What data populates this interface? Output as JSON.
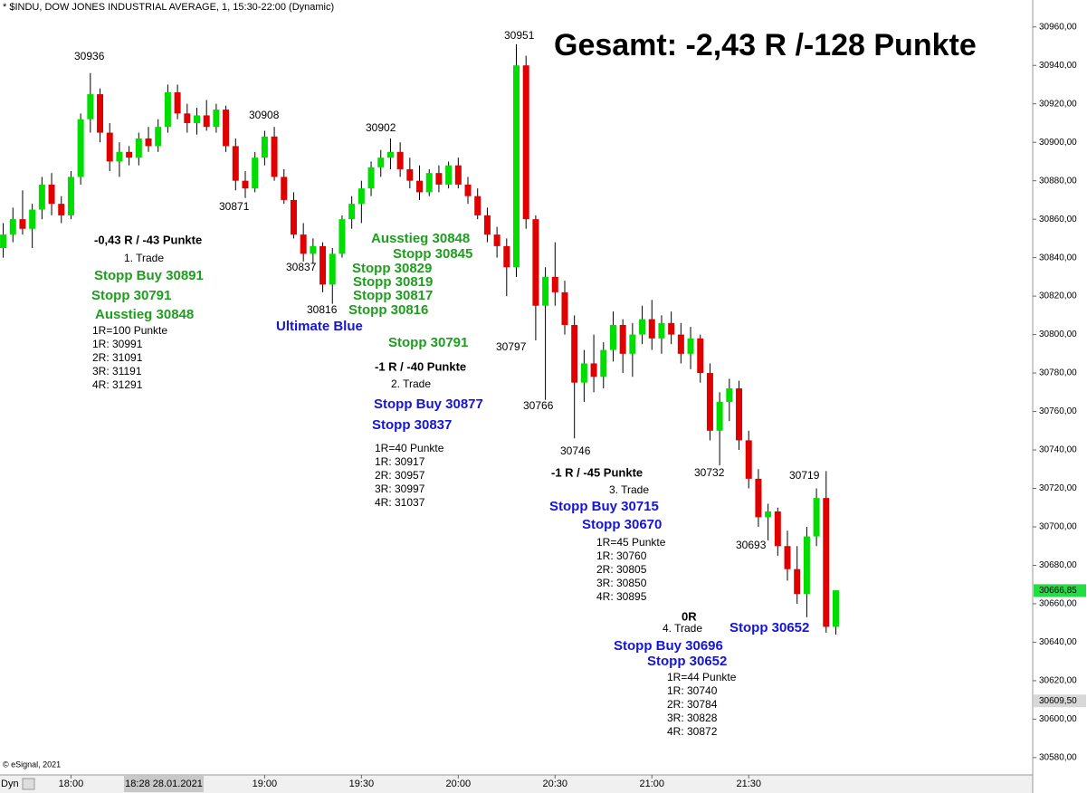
{
  "chart_data": {
    "type": "candlestick",
    "title": "* $INDU, DOW JONES INDUSTRIAL AVERAGE, 1, 15:30-22:00 (Dynamic)",
    "copyright": "© eSignal, 2021",
    "interval_button": "Dyn",
    "cursor_label": "18:28 28.01.2021",
    "up_color": "#00dd00",
    "down_color": "#e00000",
    "x": [
      "17:39",
      "17:42",
      "17:45",
      "17:48",
      "17:51",
      "17:54",
      "17:57",
      "18:00",
      "18:03",
      "18:06",
      "18:09",
      "18:12",
      "18:15",
      "18:18",
      "18:21",
      "18:24",
      "18:27",
      "18:30",
      "18:33",
      "18:36",
      "18:39",
      "18:42",
      "18:45",
      "18:48",
      "18:51",
      "18:54",
      "18:57",
      "19:00",
      "19:03",
      "19:06",
      "19:09",
      "19:12",
      "19:15",
      "19:18",
      "19:21",
      "19:24",
      "19:27",
      "19:30",
      "19:33",
      "19:36",
      "19:39",
      "19:42",
      "19:45",
      "19:48",
      "19:51",
      "19:54",
      "19:57",
      "20:00",
      "20:03",
      "20:06",
      "20:09",
      "20:12",
      "20:15",
      "20:18",
      "20:21",
      "20:24",
      "20:27",
      "20:30",
      "20:33",
      "20:36",
      "20:39",
      "20:42",
      "20:45",
      "20:48",
      "20:51",
      "20:54",
      "20:57",
      "21:00",
      "21:03",
      "21:06",
      "21:09",
      "21:12",
      "21:15",
      "21:18",
      "21:21",
      "21:24",
      "21:27",
      "21:30",
      "21:33",
      "21:36",
      "21:39",
      "21:42",
      "21:45",
      "21:48",
      "21:51",
      "21:54",
      "21:57"
    ],
    "open": [
      30845,
      30852,
      30860,
      30855,
      30865,
      30878,
      30868,
      30862,
      30882,
      30912,
      30925,
      30905,
      30890,
      30895,
      30892,
      30902,
      30898,
      30908,
      30926,
      30915,
      30910,
      30914,
      30908,
      30917,
      30898,
      30880,
      30876,
      30892,
      30903,
      30882,
      30870,
      30852,
      30842,
      30846,
      30826,
      30842,
      30860,
      30868,
      30876,
      30887,
      30892,
      30895,
      30886,
      30880,
      30874,
      30884,
      30878,
      30888,
      30878,
      30872,
      30862,
      30852,
      30846,
      30835,
      30940,
      30860,
      30815,
      30830,
      30822,
      30805,
      30775,
      30785,
      30778,
      30792,
      30805,
      30790,
      30800,
      30808,
      30798,
      30806,
      30800,
      30790,
      30798,
      30780,
      30750,
      30765,
      30772,
      30745,
      30725,
      30705,
      30708,
      30690,
      30678,
      30665,
      30695,
      30715,
      30648
    ],
    "high": [
      30858,
      30866,
      30875,
      30868,
      30882,
      30884,
      30872,
      30885,
      30915,
      30936,
      30928,
      30910,
      30900,
      30898,
      30905,
      30908,
      30912,
      30930,
      30930,
      30920,
      30918,
      30922,
      30920,
      30919,
      30902,
      30885,
      30895,
      30906,
      30908,
      30886,
      30874,
      30858,
      30850,
      30848,
      30845,
      30862,
      30872,
      30880,
      30890,
      30896,
      30902,
      30900,
      30892,
      30888,
      30886,
      30888,
      30890,
      30892,
      30882,
      30876,
      30866,
      30856,
      30850,
      30951,
      30945,
      30862,
      30835,
      30848,
      30828,
      30810,
      30792,
      30800,
      30796,
      30812,
      30808,
      30806,
      30815,
      30818,
      30810,
      30812,
      30806,
      30804,
      30800,
      30785,
      30770,
      30777,
      30776,
      30750,
      30730,
      30712,
      30710,
      30698,
      30690,
      30700,
      30720,
      30729,
      30667
    ],
    "low": [
      30840,
      30848,
      30852,
      30845,
      30860,
      30862,
      30858,
      30860,
      30878,
      30905,
      30900,
      30885,
      30882,
      30888,
      30888,
      30895,
      30895,
      30905,
      30912,
      30905,
      30904,
      30906,
      30905,
      30895,
      30875,
      30871,
      30874,
      30888,
      30880,
      30868,
      30850,
      30838,
      30837,
      30822,
      30816,
      30840,
      30855,
      30858,
      30872,
      30882,
      30886,
      30882,
      30876,
      30870,
      30872,
      30874,
      30876,
      30876,
      30868,
      30860,
      30848,
      30840,
      30820,
      30830,
      30855,
      30797,
      30766,
      30815,
      30800,
      30746,
      30765,
      30770,
      30772,
      30786,
      30780,
      30778,
      30795,
      30792,
      30790,
      30795,
      30785,
      30782,
      30775,
      30745,
      30732,
      30755,
      30740,
      30720,
      30700,
      30693,
      30685,
      30672,
      30660,
      30653,
      30690,
      30645,
      30644
    ],
    "close": [
      30852,
      30860,
      30855,
      30865,
      30878,
      30868,
      30862,
      30882,
      30912,
      30925,
      30905,
      30890,
      30895,
      30892,
      30902,
      30898,
      30908,
      30926,
      30915,
      30910,
      30914,
      30908,
      30917,
      30898,
      30880,
      30876,
      30892,
      30903,
      30882,
      30870,
      30852,
      30842,
      30846,
      30826,
      30842,
      30860,
      30868,
      30876,
      30887,
      30892,
      30895,
      30886,
      30880,
      30874,
      30884,
      30878,
      30888,
      30878,
      30872,
      30862,
      30852,
      30846,
      30835,
      30940,
      30860,
      30815,
      30830,
      30822,
      30805,
      30775,
      30785,
      30778,
      30792,
      30805,
      30790,
      30800,
      30808,
      30798,
      30806,
      30800,
      30790,
      30798,
      30780,
      30750,
      30765,
      30772,
      30745,
      30725,
      30705,
      30708,
      30690,
      30678,
      30665,
      30695,
      30715,
      30648,
      30667
    ],
    "xlim": [
      "17:38",
      "22:58"
    ],
    "xticks": [
      "18:00",
      "19:00",
      "19:30",
      "20:00",
      "20:30",
      "21:00",
      "21:30"
    ],
    "ylim": [
      30571,
      30974
    ],
    "yticks": [
      {
        "value": 30580,
        "label": "30580,00"
      },
      {
        "value": 30600,
        "label": "30600,00"
      },
      {
        "value": 30620,
        "label": "30620,00"
      },
      {
        "value": 30640,
        "label": "30640,00"
      },
      {
        "value": 30660,
        "label": "30660,00"
      },
      {
        "value": 30680,
        "label": "30680,00"
      },
      {
        "value": 30700,
        "label": "30700,00"
      },
      {
        "value": 30720,
        "label": "30720,00"
      },
      {
        "value": 30740,
        "label": "30740,00"
      },
      {
        "value": 30760,
        "label": "30760,00"
      },
      {
        "value": 30780,
        "label": "30780,00"
      },
      {
        "value": 30800,
        "label": "30800,00"
      },
      {
        "value": 30820,
        "label": "30820,00"
      },
      {
        "value": 30840,
        "label": "30840,00"
      },
      {
        "value": 30860,
        "label": "30860,00"
      },
      {
        "value": 30880,
        "label": "30880,00"
      },
      {
        "value": 30900,
        "label": "30900,00"
      },
      {
        "value": 30920,
        "label": "30920,00"
      },
      {
        "value": 30940,
        "label": "30940,00"
      },
      {
        "value": 30960,
        "label": "30960,00"
      }
    ],
    "price_markers": [
      {
        "value": 30666.85,
        "label": "30666,85",
        "color": "#22dd44"
      },
      {
        "value": 30609.5,
        "label": "30609,50",
        "color": "#d8d8d8"
      }
    ],
    "price_labels": [
      30936,
      30908,
      30871,
      30902,
      30837,
      30816,
      30951,
      30797,
      30766,
      30746,
      30732,
      30719,
      30693
    ],
    "annotations": [
      {
        "text": "Gesamt: -2,43 R /-128 Punkte",
        "color": "#000000",
        "bold": true
      },
      {
        "text": "-0,43 R / -43 Punkte",
        "color": "#000000",
        "bold": true
      },
      {
        "text": "1. Trade",
        "color": "#000000",
        "bold": false
      },
      {
        "text": "Stopp Buy 30891",
        "color": "#1e9e1e",
        "bold": true
      },
      {
        "text": "Stopp 30791",
        "color": "#1e9e1e",
        "bold": true
      },
      {
        "text": "Ausstieg 30848",
        "color": "#1e9e1e",
        "bold": true
      },
      {
        "text": "1R=100 Punkte",
        "color": "#000000",
        "bold": false
      },
      {
        "text": "1R: 30991",
        "color": "#000000",
        "bold": false
      },
      {
        "text": "2R: 31091",
        "color": "#000000",
        "bold": false
      },
      {
        "text": "3R: 31191",
        "color": "#000000",
        "bold": false
      },
      {
        "text": "4R: 31291",
        "color": "#000000",
        "bold": false
      },
      {
        "text": "Ausstieg 30848",
        "color": "#1e9e1e",
        "bold": true
      },
      {
        "text": "Stopp 30845",
        "color": "#1e9e1e",
        "bold": true
      },
      {
        "text": "Stopp 30829",
        "color": "#1e9e1e",
        "bold": true
      },
      {
        "text": "Stopp 30819",
        "color": "#1e9e1e",
        "bold": true
      },
      {
        "text": "Stopp 30817",
        "color": "#1e9e1e",
        "bold": true
      },
      {
        "text": "Stopp 30816",
        "color": "#1e9e1e",
        "bold": true
      },
      {
        "text": "Ultimate Blue",
        "color": "#1515d6",
        "bold": true
      },
      {
        "text": "Stopp 30791",
        "color": "#1e9e1e",
        "bold": true
      },
      {
        "text": "-1 R / -40 Punkte",
        "color": "#000000",
        "bold": true
      },
      {
        "text": "2. Trade",
        "color": "#000000",
        "bold": false
      },
      {
        "text": "Stopp Buy 30877",
        "color": "#1515d6",
        "bold": true
      },
      {
        "text": "Stopp 30837",
        "color": "#1515d6",
        "bold": true
      },
      {
        "text": "1R=40 Punkte",
        "color": "#000000",
        "bold": false
      },
      {
        "text": "1R: 30917",
        "color": "#000000",
        "bold": false
      },
      {
        "text": "2R: 30957",
        "color": "#000000",
        "bold": false
      },
      {
        "text": "3R: 30997",
        "color": "#000000",
        "bold": false
      },
      {
        "text": "4R: 31037",
        "color": "#000000",
        "bold": false
      },
      {
        "text": "-1 R / -45 Punkte",
        "color": "#000000",
        "bold": true
      },
      {
        "text": "3. Trade",
        "color": "#000000",
        "bold": false
      },
      {
        "text": "Stopp Buy 30715",
        "color": "#1515d6",
        "bold": true
      },
      {
        "text": "Stopp 30670",
        "color": "#1515d6",
        "bold": true
      },
      {
        "text": "1R=45 Punkte",
        "color": "#000000",
        "bold": false
      },
      {
        "text": "1R: 30760",
        "color": "#000000",
        "bold": false
      },
      {
        "text": "2R: 30805",
        "color": "#000000",
        "bold": false
      },
      {
        "text": "3R: 30850",
        "color": "#000000",
        "bold": false
      },
      {
        "text": "4R: 30895",
        "color": "#000000",
        "bold": false
      },
      {
        "text": "0R",
        "color": "#000000",
        "bold": true
      },
      {
        "text": "4. Trade",
        "color": "#000000",
        "bold": false
      },
      {
        "text": "Stopp 30652",
        "color": "#1515d6",
        "bold": true
      },
      {
        "text": "Stopp Buy 30696",
        "color": "#1515d6",
        "bold": true
      },
      {
        "text": "Stopp 30652",
        "color": "#1515d6",
        "bold": true
      },
      {
        "text": "1R=44 Punkte",
        "color": "#000000",
        "bold": false
      },
      {
        "text": "1R: 30740",
        "color": "#000000",
        "bold": false
      },
      {
        "text": "2R: 30784",
        "color": "#000000",
        "bold": false
      },
      {
        "text": "3R: 30828",
        "color": "#000000",
        "bold": false
      },
      {
        "text": "4R: 30872",
        "color": "#000000",
        "bold": false
      }
    ]
  }
}
